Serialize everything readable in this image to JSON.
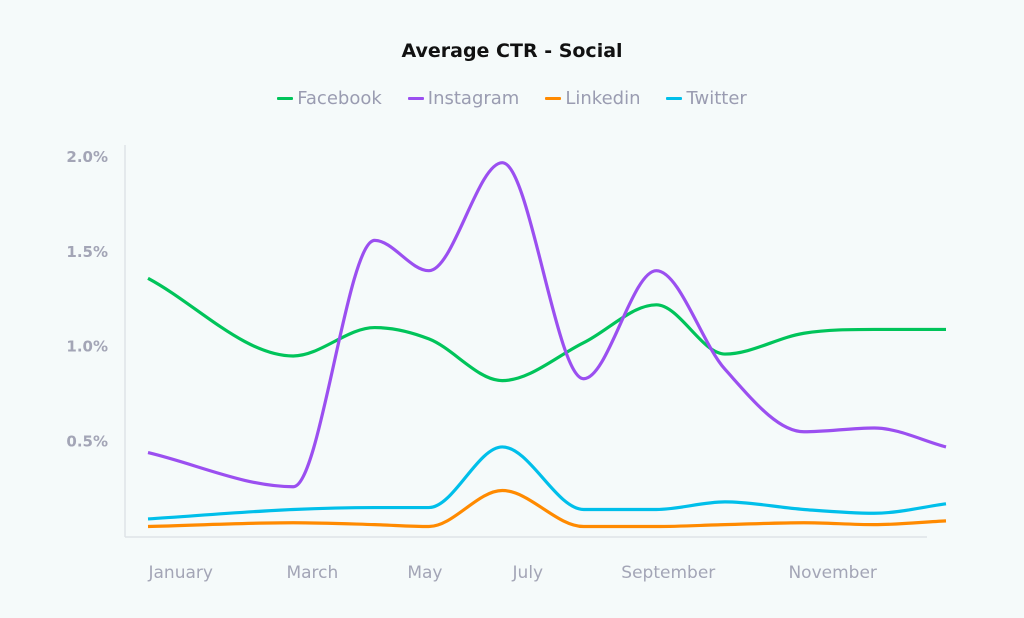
{
  "chart_data": {
    "type": "line",
    "title": "Average CTR - Social",
    "xlabel": "",
    "ylabel": "",
    "ylim": [
      0,
      2.0
    ],
    "xlim": [
      0,
      100
    ],
    "y_ticks": [
      "0.5%",
      "1.0%",
      "1.5%",
      "2.0%"
    ],
    "y_tick_values": [
      0.5,
      1.0,
      1.5,
      2.0
    ],
    "x_tick_labels": [
      "January",
      "March",
      "May",
      "July",
      "September",
      "November"
    ],
    "x_tick_positions": [
      4.1,
      20.6,
      34.7,
      47.6,
      65.2,
      85.8
    ],
    "grid": false,
    "legend_position": "top",
    "interpolation": "smooth",
    "x": [
      0,
      18.2,
      28.4,
      35.2,
      44.4,
      54.6,
      63.7,
      72.3,
      82.2,
      91.0,
      100
    ],
    "series": [
      {
        "name": "Facebook",
        "color": "#00c45a",
        "values": [
          1.36,
          0.95,
          1.1,
          1.04,
          0.82,
          1.02,
          1.22,
          0.96,
          1.07,
          1.09,
          1.09
        ]
      },
      {
        "name": "Instagram",
        "color": "#9b4ff0",
        "values": [
          0.44,
          0.26,
          1.56,
          1.4,
          1.97,
          0.83,
          1.4,
          0.88,
          0.55,
          0.57,
          0.47
        ]
      },
      {
        "name": "Linkedin",
        "color": "#ff8a00",
        "values": [
          0.05,
          0.07,
          0.06,
          0.05,
          0.24,
          0.05,
          0.05,
          0.06,
          0.07,
          0.06,
          0.08
        ]
      },
      {
        "name": "Twitter",
        "color": "#00bfea",
        "values": [
          0.09,
          0.14,
          0.15,
          0.15,
          0.47,
          0.14,
          0.14,
          0.18,
          0.14,
          0.12,
          0.17
        ]
      }
    ]
  }
}
